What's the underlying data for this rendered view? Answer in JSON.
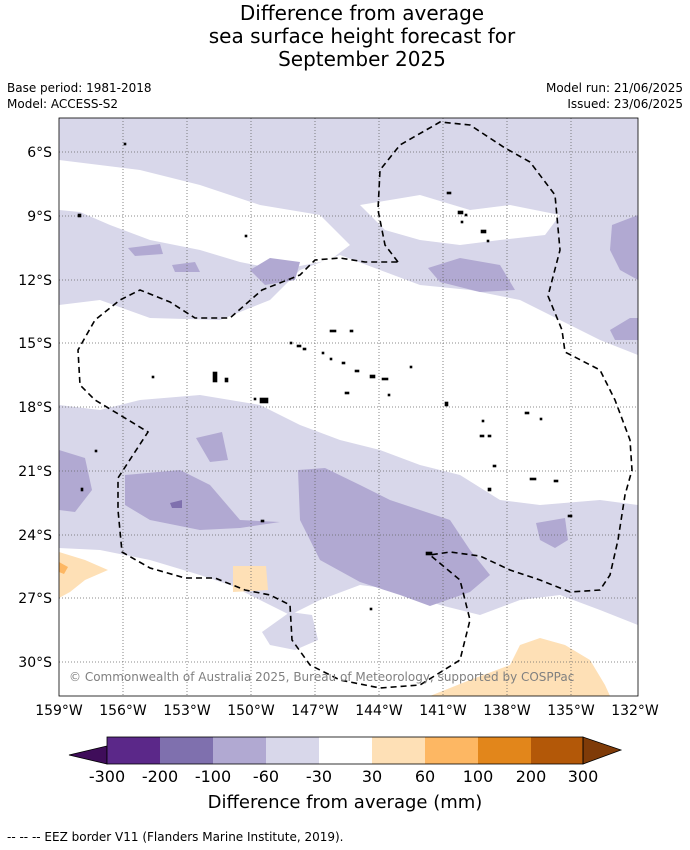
{
  "title": {
    "line1": "Difference from average",
    "line2": "sea surface height forecast for",
    "line3": "September 2025"
  },
  "meta": {
    "base_period": "Base period: 1981-2018",
    "model": "Model: ACCESS-S2",
    "model_run": "Model run: 21/06/2025",
    "issued": "Issued: 23/06/2025"
  },
  "map": {
    "lat_labels": [
      "6°S",
      "9°S",
      "12°S",
      "15°S",
      "18°S",
      "21°S",
      "24°S",
      "27°S",
      "30°S"
    ],
    "lon_labels": [
      "159°W",
      "156°W",
      "153°W",
      "150°W",
      "147°W",
      "144°W",
      "141°W",
      "138°W",
      "135°W",
      "132°W"
    ],
    "copyright": "© Commonwealth of Australia 2025, Bureau of Meteorology, supported by COSPPac"
  },
  "colorbar": {
    "ticks": [
      "-300",
      "-200",
      "-100",
      "-60",
      "-30",
      "30",
      "60",
      "100",
      "200",
      "300"
    ],
    "label": "Difference from average (mm)",
    "colors": [
      "#3f0d5a",
      "#5b2889",
      "#7f70ae",
      "#b1a9d2",
      "#d8d7ea",
      "#ffffff",
      "#fee0b6",
      "#fdb763",
      "#e2861b",
      "#b35808",
      "#7f3b08"
    ]
  },
  "footer": "-- -- -- EEZ border V11 (Flanders Marine Institute, 2019)."
}
